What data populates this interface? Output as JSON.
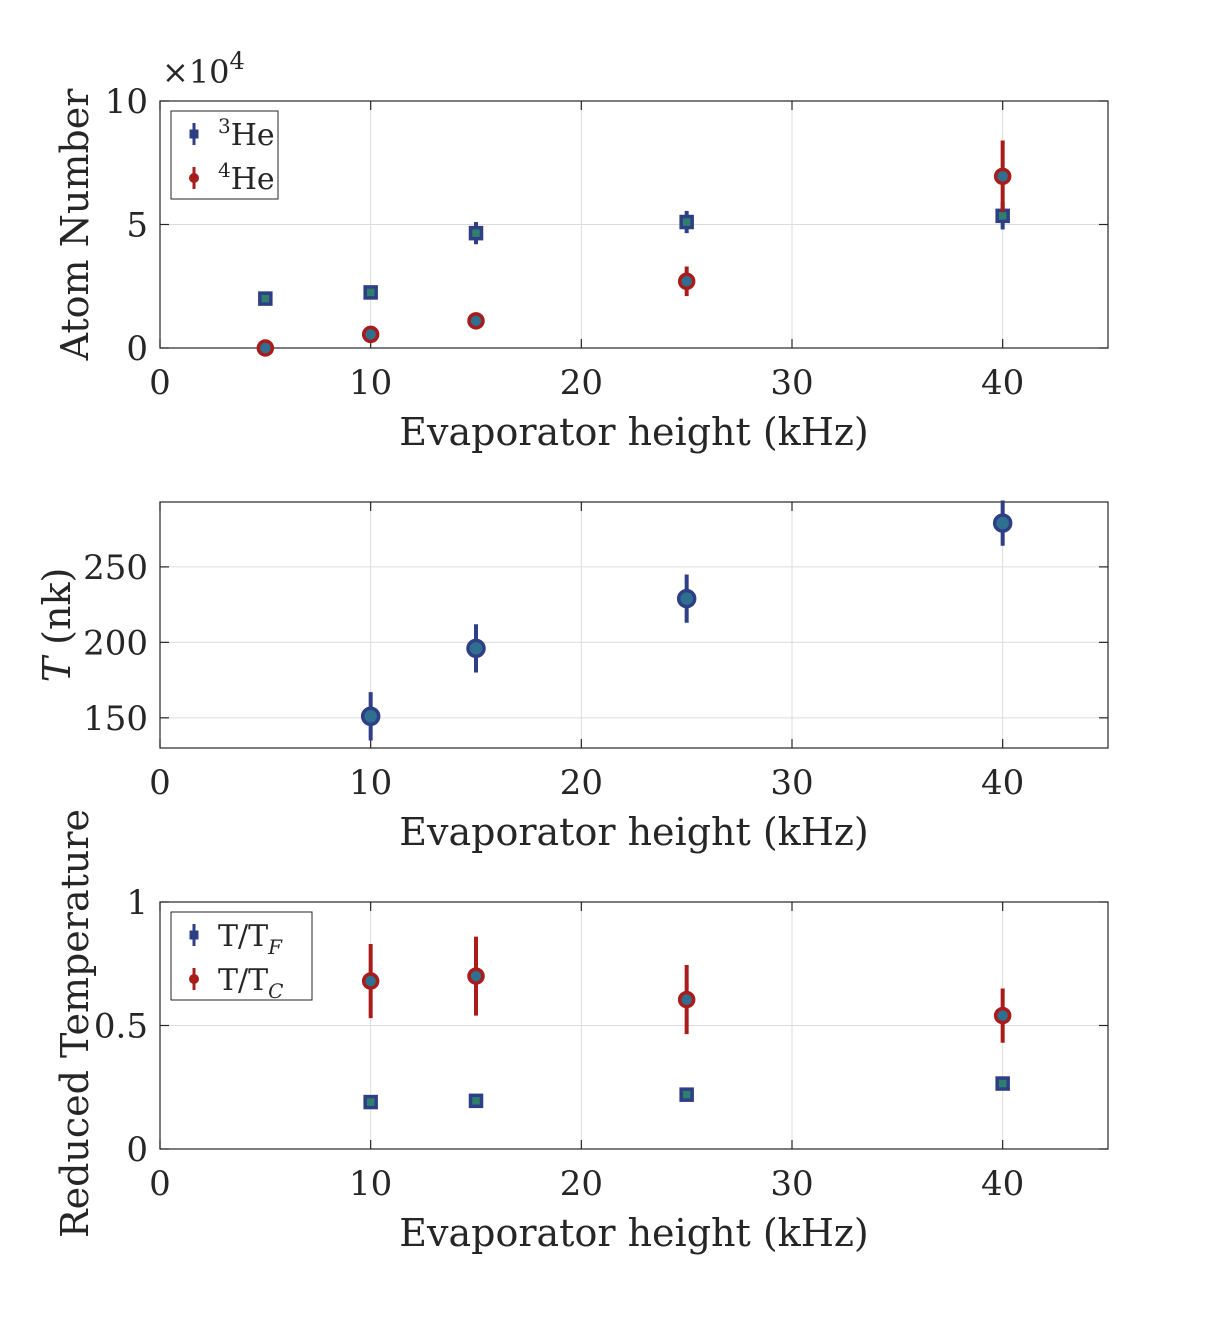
{
  "chart_data": [
    {
      "type": "scatter",
      "id": "atoms",
      "xlabel": "Evaporator height (kHz)",
      "ylabel": "Atom Number",
      "xlim": [
        0,
        45
      ],
      "ylim": [
        0,
        10
      ],
      "xticks": [
        0,
        10,
        20,
        30,
        40
      ],
      "yticks": [
        0,
        5,
        10
      ],
      "exponent_label": "×10",
      "exponent_power": "4",
      "grid": true,
      "legend_placement": "top-left",
      "series": [
        {
          "name": "He",
          "isotope": "3",
          "marker": "square",
          "color": "#2f3f86",
          "points": [
            {
              "x": 5,
              "y": 2.0,
              "err": 0.1
            },
            {
              "x": 10,
              "y": 2.25,
              "err": 0.1
            },
            {
              "x": 15,
              "y": 4.65,
              "err": 0.45
            },
            {
              "x": 25,
              "y": 5.1,
              "err": 0.45
            },
            {
              "x": 40,
              "y": 5.35,
              "err": 0.55
            }
          ]
        },
        {
          "name": "He",
          "isotope": "4",
          "marker": "circle",
          "color": "#a81c1c",
          "points": [
            {
              "x": 5,
              "y": 0.0,
              "err": 0.1
            },
            {
              "x": 10,
              "y": 0.55,
              "err": 0.1
            },
            {
              "x": 15,
              "y": 1.1,
              "err": 0.1
            },
            {
              "x": 25,
              "y": 2.7,
              "err": 0.6
            },
            {
              "x": 40,
              "y": 6.95,
              "err": 1.45
            }
          ]
        }
      ]
    },
    {
      "type": "scatter",
      "id": "temperature",
      "xlabel": "Evaporator height (kHz)",
      "ylabel_italic": "T",
      "ylabel_unit": "(nk)",
      "xlim": [
        0,
        45
      ],
      "ylim": [
        130,
        293
      ],
      "xticks": [
        0,
        10,
        20,
        30,
        40
      ],
      "yticks": [
        150,
        200,
        250
      ],
      "grid": true,
      "series": [
        {
          "name": "",
          "marker": "circle",
          "color": "#2f3f86",
          "points": [
            {
              "x": 10,
              "y": 151,
              "err": 16
            },
            {
              "x": 15,
              "y": 196,
              "err": 16
            },
            {
              "x": 25,
              "y": 229,
              "err": 16
            },
            {
              "x": 40,
              "y": 279,
              "err": 15
            }
          ]
        }
      ]
    },
    {
      "type": "scatter",
      "id": "reduced",
      "xlabel": "Evaporator height (kHz)",
      "ylabel": "Reduced Temperature",
      "xlim": [
        0,
        45
      ],
      "ylim": [
        0,
        1
      ],
      "xticks": [
        0,
        10,
        20,
        30,
        40
      ],
      "yticks": [
        0,
        0.5,
        1
      ],
      "grid": true,
      "legend_placement": "top-left",
      "series": [
        {
          "name": "T/T",
          "subscript": "F",
          "marker": "square",
          "color": "#2f3f86",
          "points": [
            {
              "x": 10,
              "y": 0.19,
              "err": 0.01
            },
            {
              "x": 15,
              "y": 0.195,
              "err": 0.01
            },
            {
              "x": 25,
              "y": 0.22,
              "err": 0.01
            },
            {
              "x": 40,
              "y": 0.265,
              "err": 0.01
            }
          ]
        },
        {
          "name": "T/T",
          "subscript": "C",
          "marker": "circle",
          "color": "#a81c1c",
          "points": [
            {
              "x": 10,
              "y": 0.68,
              "err": 0.15
            },
            {
              "x": 15,
              "y": 0.7,
              "err": 0.16
            },
            {
              "x": 25,
              "y": 0.605,
              "err": 0.14
            },
            {
              "x": 40,
              "y": 0.54,
              "err": 0.11
            }
          ]
        }
      ]
    }
  ]
}
